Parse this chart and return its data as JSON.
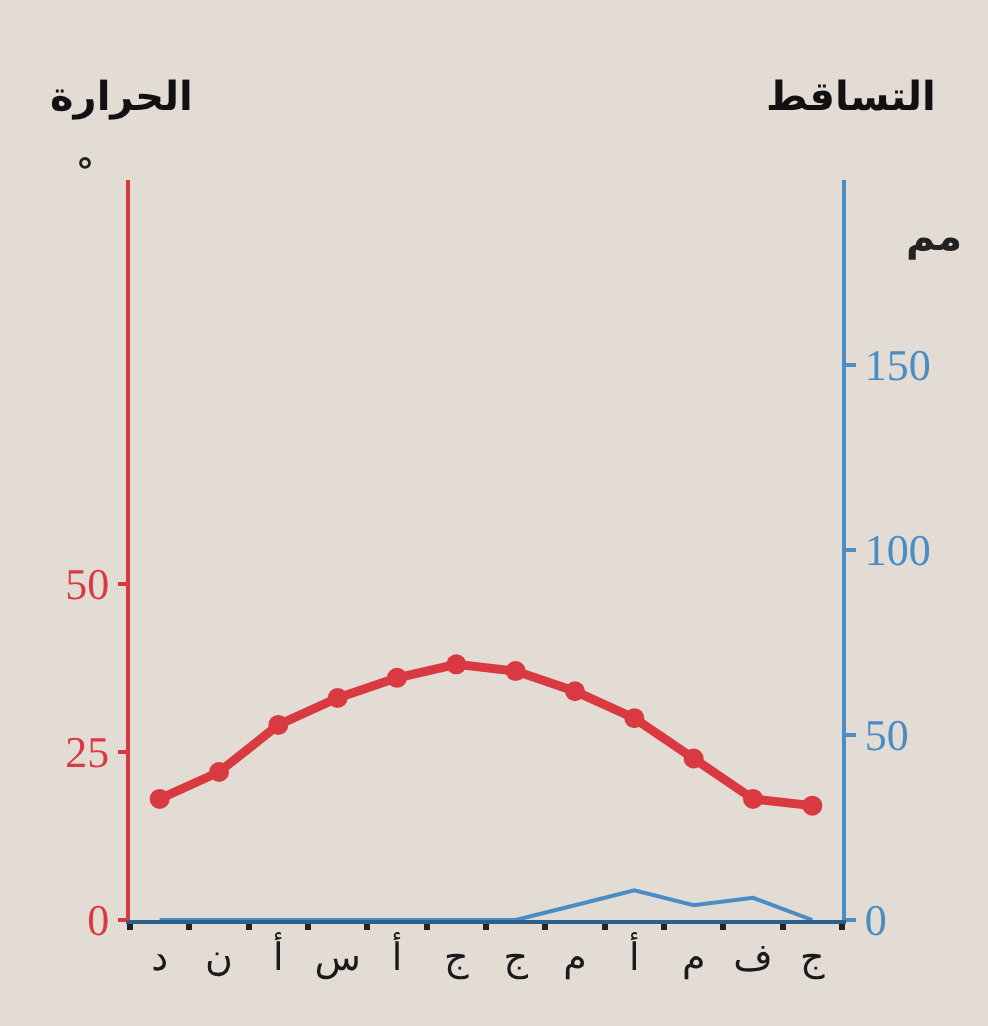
{
  "chart_data": {
    "type": "line",
    "ylabel": "الحرارة",
    "y2label": "التساقط",
    "annotations": [
      "°",
      "مم"
    ],
    "categories": [
      "د",
      "ن",
      "أ",
      "س",
      "أ",
      "ج",
      "ج",
      "م",
      "أ",
      "م",
      "ف",
      "ج"
    ],
    "series": [
      {
        "color": "#d93a42",
        "marker": "circle",
        "values": [
          18,
          22,
          29,
          33,
          36,
          38,
          37,
          34,
          30,
          24,
          18,
          17
        ]
      },
      {
        "color": "#4a8cc4",
        "axis": "y2",
        "marker": "none",
        "values": [
          0,
          0,
          0,
          0,
          0,
          0,
          0,
          4,
          8,
          4,
          6,
          0
        ]
      }
    ],
    "ylim": [
      0,
      110
    ],
    "yticks": [
      0,
      25,
      50
    ],
    "y2lim": [
      0,
      200
    ],
    "y2ticks": [
      0,
      50,
      100,
      150
    ],
    "grid": false
  }
}
